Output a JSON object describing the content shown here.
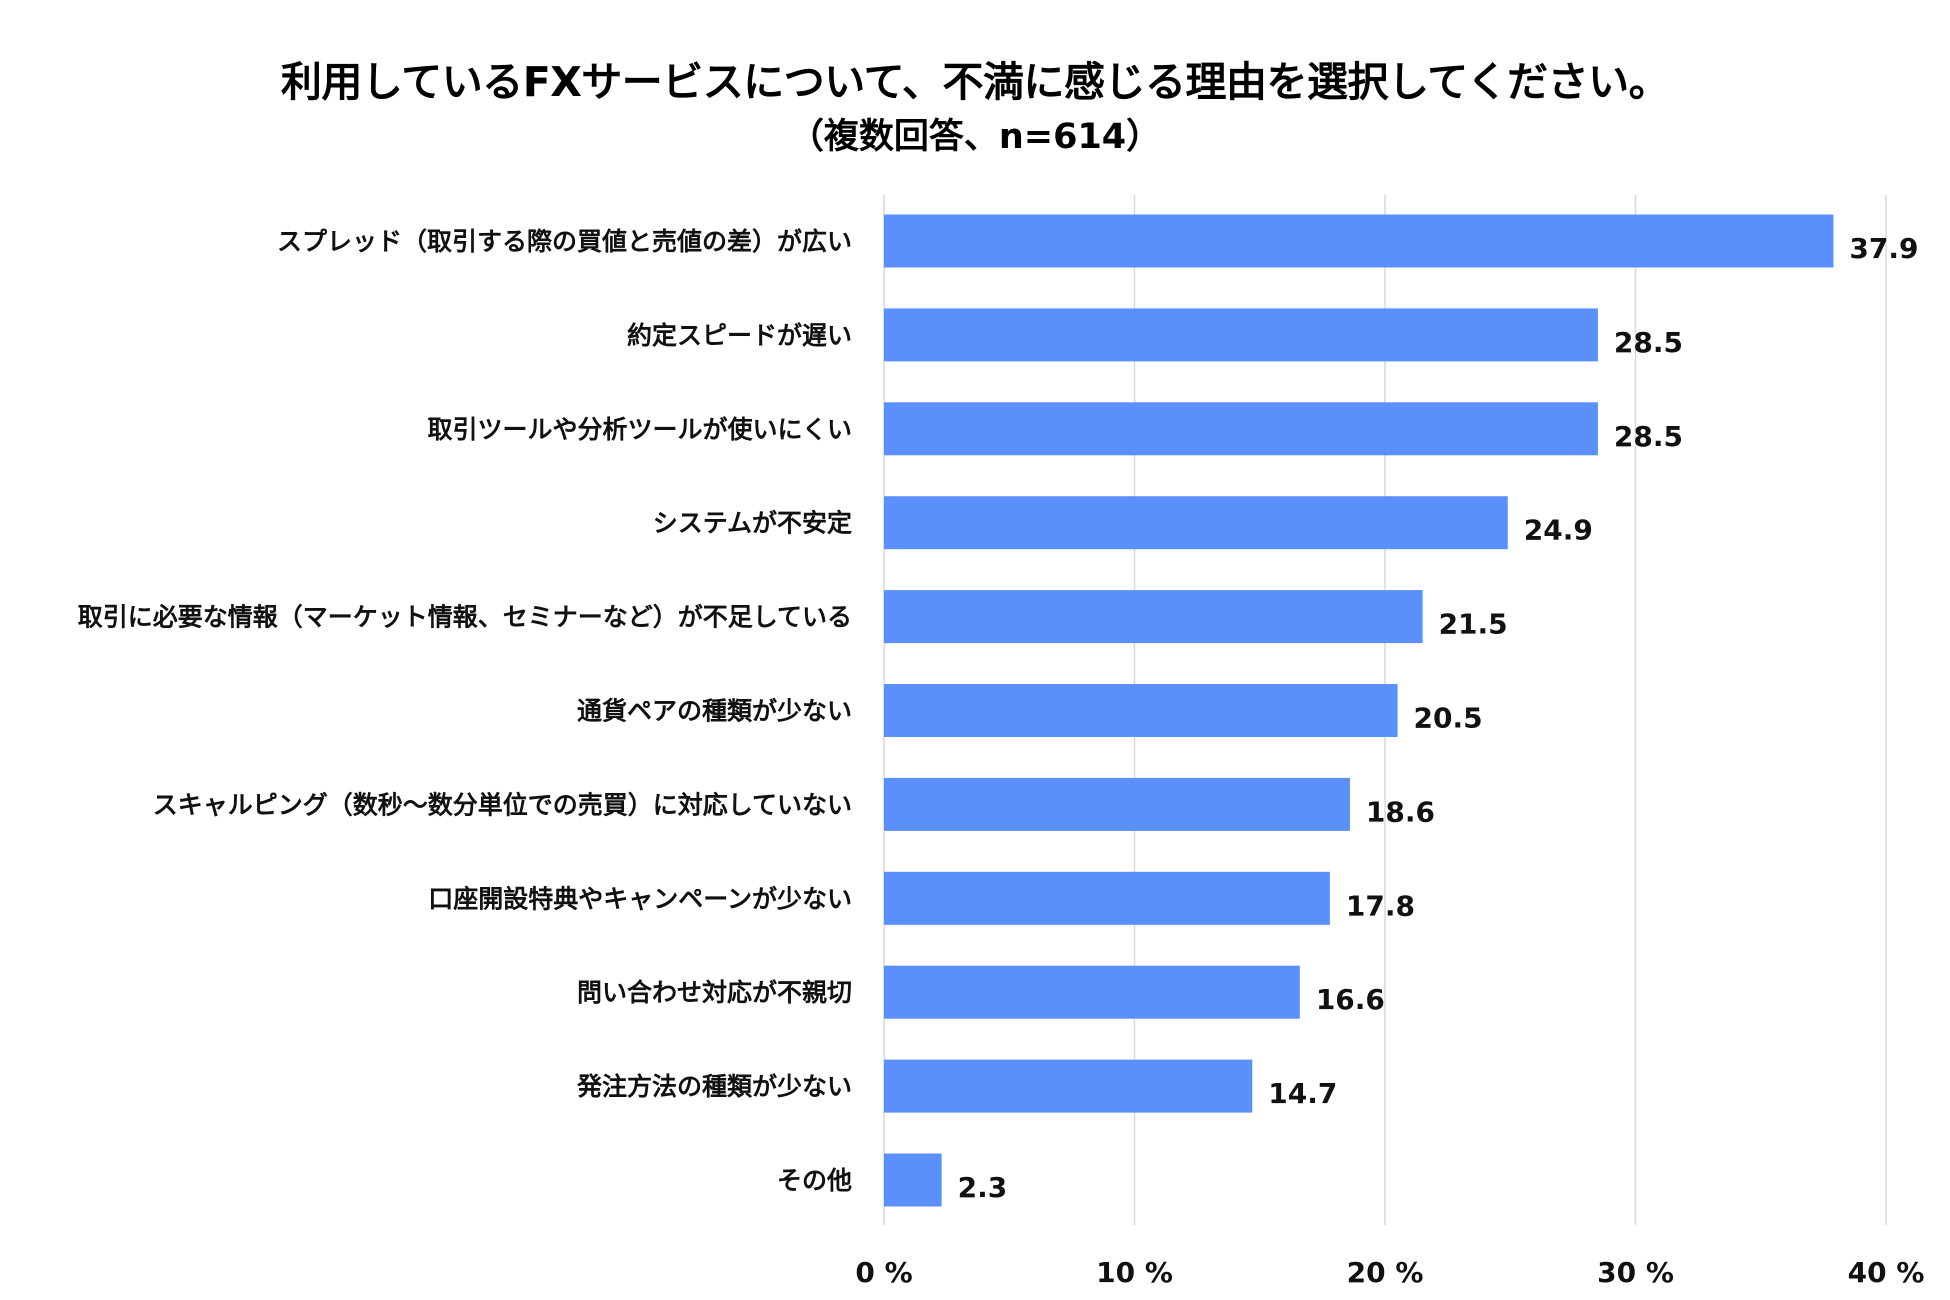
{
  "title": "利用しているFXサービスについて、不満に感じる理由を選択してください。",
  "subtitle": "（複数回答、n=614）",
  "colors": {
    "bar": "#5b8ff9",
    "grid": "#d9d9d9"
  },
  "chart_data": {
    "type": "bar",
    "orientation": "horizontal",
    "title": "利用しているFXサービスについて、不満に感じる理由を選択してください。",
    "subtitle": "（複数回答、n=614）",
    "categories": [
      "スプレッド（取引する際の買値と売値の差）が広い",
      "約定スピードが遅い",
      "取引ツールや分析ツールが使いにくい",
      "システムが不安定",
      "取引に必要な情報（マーケット情報、セミナーなど）が不足している",
      "通貨ペアの種類が少ない",
      "スキャルピング（数秒～数分単位での売買）に対応していない",
      "口座開設特典やキャンペーンが少ない",
      "問い合わせ対応が不親切",
      "発注方法の種類が少ない",
      "その他"
    ],
    "values": [
      37.9,
      28.5,
      28.5,
      24.9,
      21.5,
      20.5,
      18.6,
      17.8,
      16.6,
      14.7,
      2.3
    ],
    "value_labels": [
      "37.9",
      "28.5",
      "28.5",
      "24.9",
      "21.5",
      "20.5",
      "18.6",
      "17.8",
      "16.6",
      "14.7",
      "2.3"
    ],
    "xlim": [
      0,
      40
    ],
    "xticks": [
      0,
      10,
      20,
      30,
      40
    ],
    "xtick_labels": [
      "0 %",
      "10 %",
      "20 %",
      "30 %",
      "40 %"
    ],
    "xlabel": "",
    "ylabel": "",
    "grid": true
  }
}
